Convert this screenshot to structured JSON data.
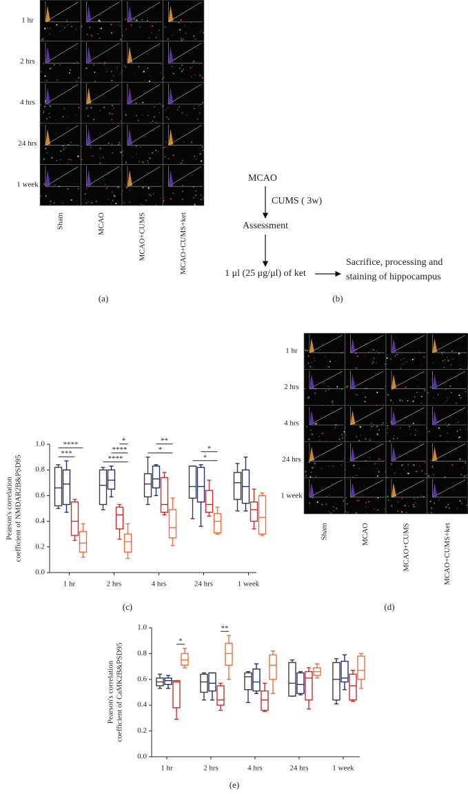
{
  "panel_a": {
    "row_labels": [
      "1 hr",
      "2 hrs",
      "4 hrs",
      "24 hrs",
      "1 week"
    ],
    "column_labels": [
      "Sham",
      "MCAO",
      "MCAO+CUMS",
      "MCAO+CUMS+ket"
    ],
    "caption": "(a)"
  },
  "panel_b": {
    "steps": [
      "MCAO",
      "Assessment",
      "1 μl (25 μg/μl) of ket"
    ],
    "interval": "CUMS ( 3w)",
    "outcome": [
      "Sacrifice, processing and",
      "staining of hippocampus"
    ],
    "caption": "(b)"
  },
  "panel_d": {
    "row_labels": [
      "1 hr",
      "2 hrs",
      "4 hrs",
      "24 hrs",
      "1 week"
    ],
    "column_labels": [
      "Sham",
      "MCAO",
      "MCAO+CUMS",
      "MCAO+CUMS+ket"
    ],
    "caption": "(d)"
  },
  "chart_data": [
    {
      "type": "box",
      "caption": "(c)",
      "y_label": [
        "Pearson's correlation",
        "coefficient of NMDAR2B&PSD95"
      ],
      "categories": [
        "1 hr",
        "2 hrs",
        "4 hrs",
        "24 hrs",
        "1 week"
      ],
      "series": [
        {
          "color": "#3a3a3a",
          "values": [
            [
              0.5,
              0.52,
              0.66,
              0.82,
              0.84
            ],
            [
              0.49,
              0.53,
              0.68,
              0.8,
              0.82
            ],
            [
              0.53,
              0.59,
              0.69,
              0.77,
              0.9
            ],
            [
              0.42,
              0.58,
              0.67,
              0.83,
              0.83
            ],
            [
              0.48,
              0.57,
              0.7,
              0.78,
              0.85
            ]
          ]
        },
        {
          "color": "#1f2d7a",
          "values": [
            [
              0.47,
              0.53,
              0.69,
              0.8,
              0.87
            ],
            [
              0.59,
              0.65,
              0.72,
              0.8,
              0.83
            ],
            [
              0.6,
              0.66,
              0.73,
              0.83,
              0.84
            ],
            [
              0.36,
              0.55,
              0.67,
              0.82,
              0.84
            ],
            [
              0.48,
              0.54,
              0.67,
              0.8,
              0.9
            ]
          ]
        },
        {
          "color": "#d0282a",
          "values": [
            [
              0.25,
              0.29,
              0.4,
              0.55,
              0.57
            ],
            [
              0.26,
              0.34,
              0.45,
              0.51,
              0.53
            ],
            [
              0.45,
              0.47,
              0.53,
              0.74,
              0.78
            ],
            [
              0.44,
              0.47,
              0.53,
              0.64,
              0.72
            ],
            [
              0.34,
              0.4,
              0.49,
              0.55,
              0.65
            ]
          ]
        },
        {
          "color": "#f26b3a",
          "values": [
            [
              0.12,
              0.16,
              0.23,
              0.32,
              0.38
            ],
            [
              0.11,
              0.16,
              0.24,
              0.3,
              0.38
            ],
            [
              0.21,
              0.27,
              0.35,
              0.49,
              0.58
            ],
            [
              0.3,
              0.31,
              0.4,
              0.46,
              0.51
            ],
            [
              0.29,
              0.3,
              0.43,
              0.6,
              0.62
            ]
          ]
        }
      ],
      "ylim": [
        0,
        1
      ],
      "yticks": [
        {
          "value": 0,
          "label": "0.0"
        },
        {
          "value": 0.2,
          "label": "0.2"
        },
        {
          "value": 0.4,
          "label": "0.4"
        },
        {
          "value": 0.6,
          "label": "0.6"
        },
        {
          "value": 0.8,
          "label": "0.8"
        },
        {
          "value": 1,
          "label": "1.0"
        }
      ],
      "significance": [
        {
          "category": 0,
          "from": 0,
          "to": 2,
          "label": "***"
        },
        {
          "category": 0,
          "from": 0,
          "to": 3,
          "label": "****"
        },
        {
          "category": 1,
          "from": 0,
          "to": 3,
          "label": "****"
        },
        {
          "category": 1,
          "from": 1,
          "to": 3,
          "label": "****"
        },
        {
          "category": 1,
          "from": 2,
          "to": 3,
          "label": "*"
        },
        {
          "category": 2,
          "from": 0,
          "to": 3,
          "label": "*"
        },
        {
          "category": 2,
          "from": 1,
          "to": 3,
          "label": "**"
        },
        {
          "category": 3,
          "from": 0,
          "to": 3,
          "label": "*"
        },
        {
          "category": 3,
          "from": 1,
          "to": 3,
          "label": "*"
        }
      ]
    },
    {
      "type": "box",
      "caption": "(e)",
      "y_label": [
        "Pearson's correlation",
        "coefficient of CaMK2B&PSD95"
      ],
      "categories": [
        "1 hr",
        "2 hrs",
        "4 hrs",
        "24 hrs",
        "1 week"
      ],
      "series": [
        {
          "color": "#3a3a3a",
          "values": [
            [
              0.53,
              0.55,
              0.58,
              0.61,
              0.64
            ],
            [
              0.44,
              0.5,
              0.58,
              0.64,
              0.65
            ],
            [
              0.42,
              0.52,
              0.62,
              0.65,
              0.66
            ],
            [
              0.47,
              0.47,
              0.57,
              0.73,
              0.75
            ],
            [
              0.41,
              0.44,
              0.6,
              0.73,
              0.76
            ]
          ]
        },
        {
          "color": "#1f2d7a",
          "values": [
            [
              0.53,
              0.56,
              0.59,
              0.61,
              0.63
            ],
            [
              0.44,
              0.51,
              0.57,
              0.65,
              0.65
            ],
            [
              0.49,
              0.51,
              0.58,
              0.68,
              0.72
            ],
            [
              0.48,
              0.49,
              0.56,
              0.65,
              0.66
            ],
            [
              0.52,
              0.58,
              0.61,
              0.74,
              0.79
            ]
          ]
        },
        {
          "color": "#d0282a",
          "values": [
            [
              0.29,
              0.38,
              0.58,
              0.59,
              0.59
            ],
            [
              0.36,
              0.4,
              0.44,
              0.55,
              0.57
            ],
            [
              0.35,
              0.36,
              0.44,
              0.51,
              0.57
            ],
            [
              0.37,
              0.44,
              0.61,
              0.66,
              0.69
            ],
            [
              0.43,
              0.44,
              0.55,
              0.64,
              0.67
            ]
          ]
        },
        {
          "color": "#f26b3a",
          "values": [
            [
              0.69,
              0.71,
              0.75,
              0.8,
              0.84
            ],
            [
              0.6,
              0.71,
              0.8,
              0.88,
              0.94
            ],
            [
              0.49,
              0.6,
              0.71,
              0.79,
              0.82
            ],
            [
              0.61,
              0.63,
              0.66,
              0.69,
              0.72
            ],
            [
              0.53,
              0.6,
              0.67,
              0.78,
              0.8
            ]
          ]
        }
      ],
      "ylim": [
        0,
        1
      ],
      "yticks": [
        {
          "value": 0,
          "label": "0.0"
        },
        {
          "value": 0.2,
          "label": "0.2"
        },
        {
          "value": 0.4,
          "label": "0.4"
        },
        {
          "value": 0.6,
          "label": "0.6"
        },
        {
          "value": 0.8,
          "label": "0.8"
        },
        {
          "value": 1,
          "label": "1.0"
        }
      ],
      "significance": [
        {
          "category": 0,
          "from": 2,
          "to": 3,
          "label": "*"
        },
        {
          "category": 1,
          "from": 2,
          "to": 3,
          "label": "**"
        }
      ]
    }
  ]
}
